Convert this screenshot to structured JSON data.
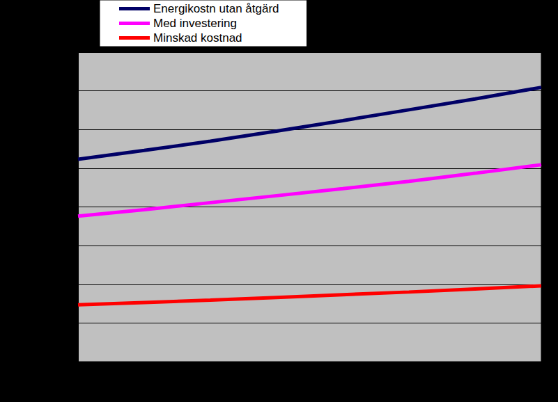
{
  "chart_data": {
    "type": "line",
    "categories": [
      null,
      null,
      null,
      null,
      null,
      null,
      null,
      null
    ],
    "series": [
      {
        "name": "Energikostn utan åtgärd",
        "color": "#000066",
        "values": [
          5.23,
          5.46,
          5.7,
          5.96,
          6.23,
          6.51,
          6.79,
          7.09
        ]
      },
      {
        "name": "Med investering",
        "color": "#ff00ff",
        "values": [
          3.76,
          3.93,
          4.11,
          4.29,
          4.47,
          4.66,
          4.87,
          5.09
        ]
      },
      {
        "name": "Minskad kostnad",
        "color": "#ff0000",
        "values": [
          1.47,
          1.53,
          1.59,
          1.66,
          1.73,
          1.8,
          1.88,
          1.96
        ]
      }
    ],
    "ylim": [
      0,
      8
    ],
    "yticks": [
      0,
      1,
      2,
      3,
      4,
      5,
      6,
      7,
      8
    ],
    "grid": true,
    "legend": "top",
    "tick_labels": false
  }
}
